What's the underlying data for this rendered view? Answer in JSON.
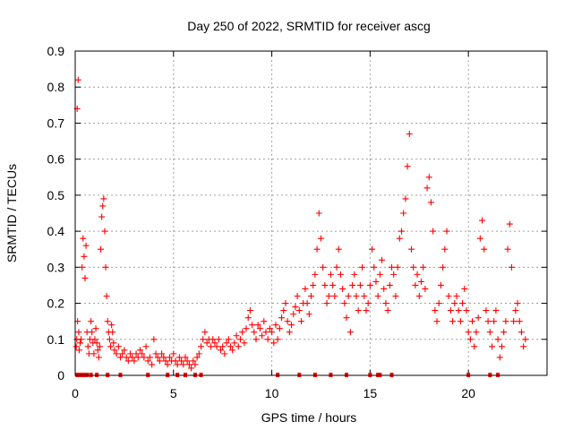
{
  "chart_data": {
    "type": "scatter",
    "title": "Day 250 of 2022, SRMTID for receiver ascg",
    "xlabel": "GPS time / hours",
    "ylabel": "SRMTID / TECUs",
    "xlim": [
      0,
      24
    ],
    "ylim": [
      0,
      0.9
    ],
    "x_ticks": [
      0,
      5,
      10,
      15,
      20
    ],
    "x_tick_labels": [
      "0",
      "5",
      "10",
      "15",
      "20"
    ],
    "y_ticks": [
      0,
      0.1,
      0.2,
      0.3,
      0.4,
      0.5,
      0.6,
      0.7,
      0.8,
      0.9
    ],
    "y_tick_labels": [
      "0",
      "0.1",
      "0.2",
      "0.3",
      "0.4",
      "0.5",
      "0.6",
      "0.7",
      "0.8",
      "0.9"
    ],
    "grid": true,
    "marker": "+",
    "series": [
      {
        "name": "SRMTID",
        "color": "#ff0000",
        "points": [
          [
            0.05,
            0.08
          ],
          [
            0.08,
            0.1
          ],
          [
            0.1,
            0.74
          ],
          [
            0.12,
            0.15
          ],
          [
            0.15,
            0.82
          ],
          [
            0.18,
            0.12
          ],
          [
            0.2,
            0.07
          ],
          [
            0.25,
            0.09
          ],
          [
            0.3,
            0.1
          ],
          [
            0.35,
            0.3
          ],
          [
            0.4,
            0.38
          ],
          [
            0.45,
            0.33
          ],
          [
            0.5,
            0.27
          ],
          [
            0.55,
            0.36
          ],
          [
            0.6,
            0.12
          ],
          [
            0.65,
            0.08
          ],
          [
            0.7,
            0.06
          ],
          [
            0.75,
            0.1
          ],
          [
            0.8,
            0.15
          ],
          [
            0.85,
            0.12
          ],
          [
            0.9,
            0.09
          ],
          [
            0.95,
            0.06
          ],
          [
            1.0,
            0.1
          ],
          [
            1.05,
            0.13
          ],
          [
            1.1,
            0.09
          ],
          [
            1.15,
            0.07
          ],
          [
            1.2,
            0.05
          ],
          [
            1.25,
            0.08
          ],
          [
            1.3,
            0.35
          ],
          [
            1.35,
            0.44
          ],
          [
            1.4,
            0.47
          ],
          [
            1.45,
            0.49
          ],
          [
            1.5,
            0.4
          ],
          [
            1.55,
            0.3
          ],
          [
            1.6,
            0.22
          ],
          [
            1.65,
            0.15
          ],
          [
            1.7,
            0.12
          ],
          [
            1.75,
            0.1
          ],
          [
            1.8,
            0.08
          ],
          [
            1.85,
            0.14
          ],
          [
            1.9,
            0.12
          ],
          [
            1.95,
            0.09
          ],
          [
            2.0,
            0.07
          ],
          [
            2.1,
            0.06
          ],
          [
            2.2,
            0.08
          ],
          [
            2.3,
            0.05
          ],
          [
            2.4,
            0.06
          ],
          [
            2.5,
            0.07
          ],
          [
            2.6,
            0.05
          ],
          [
            2.7,
            0.04
          ],
          [
            2.8,
            0.06
          ],
          [
            2.9,
            0.05
          ],
          [
            3.0,
            0.04
          ],
          [
            3.1,
            0.06
          ],
          [
            3.2,
            0.05
          ],
          [
            3.3,
            0.07
          ],
          [
            3.4,
            0.06
          ],
          [
            3.5,
            0.05
          ],
          [
            3.6,
            0.08
          ],
          [
            3.7,
            0.04
          ],
          [
            3.8,
            0.05
          ],
          [
            3.9,
            0.03
          ],
          [
            4.0,
            0.1
          ],
          [
            4.1,
            0.06
          ],
          [
            4.2,
            0.05
          ],
          [
            4.3,
            0.04
          ],
          [
            4.4,
            0.06
          ],
          [
            4.5,
            0.05
          ],
          [
            4.6,
            0.04
          ],
          [
            4.7,
            0.03
          ],
          [
            4.8,
            0.05
          ],
          [
            4.9,
            0.04
          ],
          [
            5.0,
            0.06
          ],
          [
            5.1,
            0.04
          ],
          [
            5.2,
            0.03
          ],
          [
            5.3,
            0.05
          ],
          [
            5.4,
            0.04
          ],
          [
            5.5,
            0.03
          ],
          [
            5.6,
            0.05
          ],
          [
            5.7,
            0.04
          ],
          [
            5.8,
            0.03
          ],
          [
            5.9,
            0.02
          ],
          [
            6.0,
            0.04
          ],
          [
            6.1,
            0.03
          ],
          [
            6.2,
            0.05
          ],
          [
            6.3,
            0.06
          ],
          [
            6.4,
            0.08
          ],
          [
            6.5,
            0.1
          ],
          [
            6.6,
            0.12
          ],
          [
            6.7,
            0.09
          ],
          [
            6.8,
            0.1
          ],
          [
            6.9,
            0.08
          ],
          [
            7.0,
            0.1
          ],
          [
            7.1,
            0.09
          ],
          [
            7.2,
            0.08
          ],
          [
            7.3,
            0.1
          ],
          [
            7.4,
            0.07
          ],
          [
            7.5,
            0.08
          ],
          [
            7.6,
            0.06
          ],
          [
            7.7,
            0.09
          ],
          [
            7.8,
            0.1
          ],
          [
            7.9,
            0.08
          ],
          [
            8.0,
            0.07
          ],
          [
            8.1,
            0.09
          ],
          [
            8.2,
            0.11
          ],
          [
            8.3,
            0.08
          ],
          [
            8.4,
            0.1
          ],
          [
            8.5,
            0.12
          ],
          [
            8.6,
            0.09
          ],
          [
            8.7,
            0.13
          ],
          [
            8.8,
            0.16
          ],
          [
            8.9,
            0.18
          ],
          [
            9.0,
            0.14
          ],
          [
            9.1,
            0.12
          ],
          [
            9.2,
            0.1
          ],
          [
            9.3,
            0.14
          ],
          [
            9.4,
            0.13
          ],
          [
            9.5,
            0.11
          ],
          [
            9.6,
            0.15
          ],
          [
            9.7,
            0.12
          ],
          [
            9.8,
            0.1
          ],
          [
            9.9,
            0.13
          ],
          [
            10.0,
            0.12
          ],
          [
            10.1,
            0.09
          ],
          [
            10.2,
            0.14
          ],
          [
            10.3,
            0.1
          ],
          [
            10.4,
            0.13
          ],
          [
            10.5,
            0.16
          ],
          [
            10.6,
            0.18
          ],
          [
            10.7,
            0.2
          ],
          [
            10.8,
            0.15
          ],
          [
            10.9,
            0.12
          ],
          [
            11.0,
            0.14
          ],
          [
            11.1,
            0.17
          ],
          [
            11.2,
            0.19
          ],
          [
            11.3,
            0.22
          ],
          [
            11.4,
            0.18
          ],
          [
            11.5,
            0.15
          ],
          [
            11.6,
            0.2
          ],
          [
            11.7,
            0.24
          ],
          [
            11.8,
            0.2
          ],
          [
            11.9,
            0.17
          ],
          [
            12.0,
            0.22
          ],
          [
            12.1,
            0.25
          ],
          [
            12.2,
            0.28
          ],
          [
            12.3,
            0.35
          ],
          [
            12.4,
            0.45
          ],
          [
            12.5,
            0.38
          ],
          [
            12.6,
            0.3
          ],
          [
            12.7,
            0.25
          ],
          [
            12.8,
            0.2
          ],
          [
            12.9,
            0.22
          ],
          [
            13.0,
            0.28
          ],
          [
            13.1,
            0.25
          ],
          [
            13.2,
            0.22
          ],
          [
            13.3,
            0.3
          ],
          [
            13.4,
            0.35
          ],
          [
            13.5,
            0.28
          ],
          [
            13.6,
            0.24
          ],
          [
            13.7,
            0.2
          ],
          [
            13.8,
            0.16
          ],
          [
            13.9,
            0.22
          ],
          [
            14.0,
            0.12
          ],
          [
            14.1,
            0.25
          ],
          [
            14.2,
            0.28
          ],
          [
            14.3,
            0.22
          ],
          [
            14.4,
            0.18
          ],
          [
            14.5,
            0.25
          ],
          [
            14.6,
            0.3
          ],
          [
            14.7,
            0.22
          ],
          [
            14.8,
            0.18
          ],
          [
            14.9,
            0.2
          ],
          [
            15.0,
            0.25
          ],
          [
            15.1,
            0.35
          ],
          [
            15.2,
            0.3
          ],
          [
            15.3,
            0.26
          ],
          [
            15.4,
            0.22
          ],
          [
            15.5,
            0.28
          ],
          [
            15.6,
            0.32
          ],
          [
            15.7,
            0.24
          ],
          [
            15.8,
            0.2
          ],
          [
            15.9,
            0.18
          ],
          [
            16.0,
            0.25
          ],
          [
            16.1,
            0.3
          ],
          [
            16.2,
            0.28
          ],
          [
            16.3,
            0.22
          ],
          [
            16.4,
            0.3
          ],
          [
            16.5,
            0.38
          ],
          [
            16.6,
            0.4
          ],
          [
            16.7,
            0.45
          ],
          [
            16.8,
            0.49
          ],
          [
            16.9,
            0.58
          ],
          [
            17.0,
            0.67
          ],
          [
            17.1,
            0.35
          ],
          [
            17.2,
            0.3
          ],
          [
            17.3,
            0.25
          ],
          [
            17.4,
            0.28
          ],
          [
            17.5,
            0.22
          ],
          [
            17.6,
            0.26
          ],
          [
            17.7,
            0.3
          ],
          [
            17.8,
            0.24
          ],
          [
            17.9,
            0.52
          ],
          [
            18.0,
            0.55
          ],
          [
            18.1,
            0.48
          ],
          [
            18.2,
            0.4
          ],
          [
            18.3,
            0.18
          ],
          [
            18.4,
            0.15
          ],
          [
            18.5,
            0.2
          ],
          [
            18.6,
            0.25
          ],
          [
            18.7,
            0.3
          ],
          [
            18.8,
            0.35
          ],
          [
            18.9,
            0.4
          ],
          [
            19.0,
            0.22
          ],
          [
            19.1,
            0.18
          ],
          [
            19.2,
            0.15
          ],
          [
            19.3,
            0.2
          ],
          [
            19.4,
            0.22
          ],
          [
            19.5,
            0.18
          ],
          [
            19.6,
            0.15
          ],
          [
            19.7,
            0.2
          ],
          [
            19.8,
            0.24
          ],
          [
            19.9,
            0.18
          ],
          [
            20.0,
            0.12
          ],
          [
            20.1,
            0.1
          ],
          [
            20.2,
            0.15
          ],
          [
            20.3,
            0.08
          ],
          [
            20.4,
            0.12
          ],
          [
            20.5,
            0.16
          ],
          [
            20.6,
            0.38
          ],
          [
            20.7,
            0.43
          ],
          [
            20.8,
            0.35
          ],
          [
            20.9,
            0.18
          ],
          [
            21.0,
            0.15
          ],
          [
            21.1,
            0.12
          ],
          [
            21.2,
            0.08
          ],
          [
            21.3,
            0.15
          ],
          [
            21.4,
            0.18
          ],
          [
            21.5,
            0.1
          ],
          [
            21.6,
            0.05
          ],
          [
            21.7,
            0.08
          ],
          [
            21.8,
            0.12
          ],
          [
            21.9,
            0.15
          ],
          [
            22.0,
            0.35
          ],
          [
            22.1,
            0.42
          ],
          [
            22.2,
            0.3
          ],
          [
            22.3,
            0.15
          ],
          [
            22.4,
            0.18
          ],
          [
            22.5,
            0.2
          ],
          [
            22.6,
            0.15
          ],
          [
            22.7,
            0.12
          ],
          [
            22.8,
            0.08
          ],
          [
            22.9,
            0.1
          ]
        ],
        "zero_points": [
          0.1,
          0.25,
          0.35,
          0.5,
          0.6,
          0.8,
          1.1,
          1.65,
          2.3,
          3.7,
          4.7,
          5.2,
          5.6,
          6.1,
          6.4,
          10.3,
          11.4,
          12.2,
          13.0,
          13.8,
          15.0,
          15.4,
          15.5,
          16.1,
          20.0,
          21.1,
          21.5
        ]
      }
    ]
  }
}
